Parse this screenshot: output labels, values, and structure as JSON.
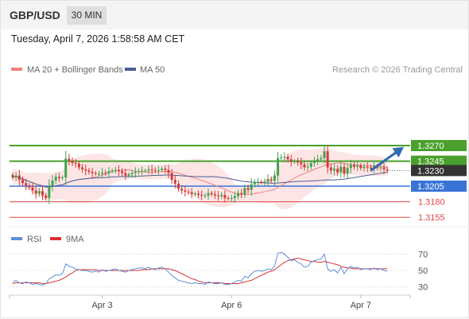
{
  "header": {
    "symbol": "GBP/USD",
    "timeframe": "30 MIN",
    "datetime": "Tuesday, April 7, 2026 1:58:58 AM CET"
  },
  "colors": {
    "bollinger_fill": "#fde5e5",
    "ma20": "#f08080",
    "ma50": "#4a5d94",
    "resistance": "#4aa02c",
    "pivot": "#3874d8",
    "support": "#e04848",
    "up_candle": "#3fa34d",
    "down_candle": "#d23b3b",
    "arrow": "#2f6db0",
    "rsi": "#5b8fd9",
    "rsi_ma": "#d93030"
  },
  "chart_data": [
    {
      "type": "candlestick",
      "legend": [
        {
          "name": "MA 20 + Bollinger Bands",
          "color": "#f08080"
        },
        {
          "name": "MA 50",
          "color": "#4a5d94"
        }
      ],
      "attribution": "Research © 2026 Trading Central",
      "ylim": [
        1.314,
        1.34
      ],
      "x_ticks": [
        {
          "label": "Apr 3",
          "index": 27
        },
        {
          "label": "Apr 6",
          "index": 66
        },
        {
          "label": "Apr 7",
          "index": 105
        }
      ],
      "levels": [
        {
          "value": 1.327,
          "label": "1.3270",
          "kind": "resistance"
        },
        {
          "value": 1.3245,
          "label": "1.3245",
          "kind": "resistance"
        },
        {
          "value": 1.3205,
          "label": "1.3205",
          "kind": "pivot"
        },
        {
          "value": 1.318,
          "label": "1.3180",
          "kind": "support"
        },
        {
          "value": 1.3155,
          "label": "1.3155",
          "kind": "support"
        }
      ],
      "last_price": {
        "value": 1.323,
        "label": "1.3230"
      },
      "arrow": {
        "from": [
          108,
          1.323
        ],
        "to": [
          118,
          1.3268
        ]
      },
      "close": [
        1.3219,
        1.3222,
        1.3215,
        1.321,
        1.3206,
        1.3203,
        1.3198,
        1.3193,
        1.3197,
        1.319,
        1.3186,
        1.3206,
        1.3214,
        1.322,
        1.3218,
        1.3219,
        1.3249,
        1.3246,
        1.3242,
        1.3241,
        1.3235,
        1.3232,
        1.323,
        1.3228,
        1.3226,
        1.3225,
        1.3225,
        1.3227,
        1.3226,
        1.3229,
        1.323,
        1.3231,
        1.3229,
        1.3226,
        1.3222,
        1.3224,
        1.3226,
        1.3228,
        1.3229,
        1.323,
        1.323,
        1.3232,
        1.3231,
        1.323,
        1.3231,
        1.3233,
        1.3231,
        1.3226,
        1.3215,
        1.3209,
        1.3201,
        1.3198,
        1.3196,
        1.3195,
        1.3192,
        1.3193,
        1.3191,
        1.319,
        1.319,
        1.3194,
        1.3192,
        1.319,
        1.3189,
        1.3191,
        1.3186,
        1.3185,
        1.3186,
        1.3189,
        1.3194,
        1.3192,
        1.3202,
        1.3199,
        1.3208,
        1.3211,
        1.3212,
        1.3211,
        1.3212,
        1.3216,
        1.3214,
        1.3222,
        1.325,
        1.3251,
        1.3252,
        1.3248,
        1.3244,
        1.3245,
        1.3243,
        1.324,
        1.3235,
        1.3236,
        1.3242,
        1.3246,
        1.3248,
        1.325,
        1.3261,
        1.3235,
        1.323,
        1.3233,
        1.3227,
        1.3236,
        1.3225,
        1.3234,
        1.3239,
        1.3236,
        1.3238,
        1.3234,
        1.3236,
        1.3235,
        1.3233,
        1.3237,
        1.3234,
        1.3235,
        1.3232,
        1.323
      ]
    },
    {
      "type": "line",
      "legend": [
        {
          "name": "RSI",
          "color": "#5b8fd9"
        },
        {
          "name": "9MA",
          "color": "#d93030"
        }
      ],
      "ylim": [
        20,
        80
      ],
      "y_ticks": [
        70,
        50,
        30
      ],
      "series": [
        {
          "name": "RSI",
          "values": [
            36,
            38,
            35,
            34,
            36,
            35,
            33,
            34,
            33,
            32,
            34,
            40,
            42,
            45,
            44,
            46,
            58,
            55,
            54,
            52,
            51,
            50,
            50,
            49,
            48,
            49,
            48,
            51,
            49,
            50,
            51,
            52,
            50,
            49,
            48,
            50,
            51,
            52,
            53,
            53,
            52,
            54,
            52,
            51,
            53,
            54,
            52,
            48,
            44,
            41,
            38,
            37,
            36,
            35,
            34,
            35,
            34,
            34,
            33,
            36,
            35,
            34,
            34,
            35,
            33,
            33,
            34,
            36,
            38,
            37,
            43,
            41,
            46,
            49,
            50,
            49,
            50,
            52,
            51,
            55,
            71,
            72,
            70,
            66,
            62,
            63,
            60,
            58,
            54,
            55,
            60,
            62,
            63,
            64,
            70,
            52,
            49,
            51,
            47,
            54,
            46,
            52,
            55,
            53,
            54,
            51,
            52,
            52,
            51,
            53,
            51,
            52,
            50,
            49
          ]
        },
        {
          "name": "9MA",
          "values": [
            34,
            35,
            35,
            35,
            35,
            35,
            35,
            35,
            35,
            34,
            34,
            35,
            36,
            37,
            38,
            40,
            42,
            45,
            47,
            50,
            51,
            51,
            51,
            51,
            51,
            51,
            50,
            50,
            50,
            50,
            50,
            50,
            50,
            50,
            50,
            50,
            50,
            50,
            50,
            51,
            51,
            51,
            52,
            52,
            52,
            52,
            52,
            52,
            51,
            50,
            48,
            46,
            44,
            42,
            40,
            39,
            37,
            36,
            35,
            35,
            35,
            35,
            35,
            35,
            34,
            34,
            34,
            34,
            34,
            35,
            36,
            37,
            38,
            40,
            42,
            44,
            46,
            48,
            49,
            51,
            54,
            57,
            60,
            62,
            63,
            64,
            65,
            64,
            63,
            62,
            61,
            61,
            60,
            60,
            61,
            60,
            59,
            58,
            57,
            55,
            54,
            53,
            53,
            52,
            52,
            52,
            52,
            52,
            52,
            52,
            52,
            52,
            52,
            52
          ]
        }
      ]
    }
  ]
}
